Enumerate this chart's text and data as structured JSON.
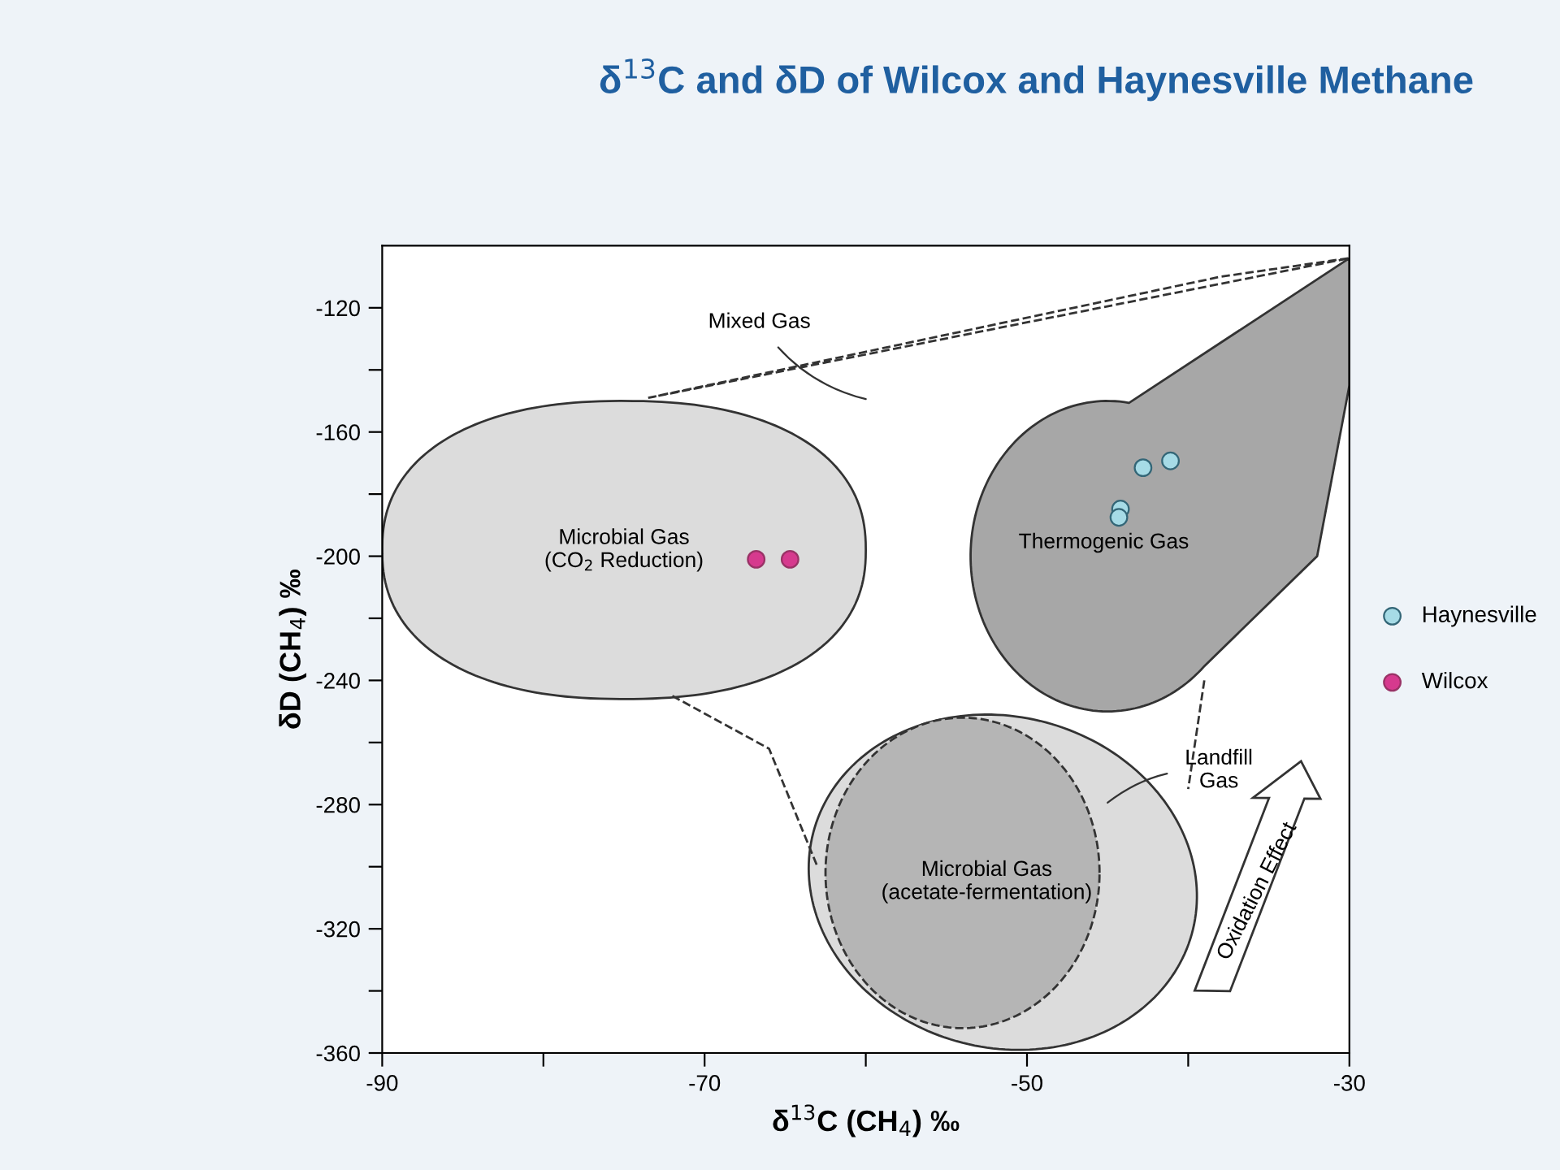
{
  "chart_data": {
    "type": "scatter",
    "title": "δ$^{13}$C and δD of Wilcox and Haynesville Methane",
    "xlabel": "δ$^{13}$C (CH$_{4}$) ‰",
    "ylabel": "δD (CH$_{4}$) ‰",
    "xlim": [
      -90,
      -30
    ],
    "ylim": [
      -360,
      -100
    ],
    "xticks": [
      -90,
      {
        "value": -80,
        "label": null
      },
      -70,
      {
        "value": -60,
        "label": null
      },
      -50,
      {
        "value": -40,
        "label": null
      },
      -30
    ],
    "yticks": [
      -360,
      {
        "value": -340,
        "label": null
      },
      -320,
      {
        "value": -300,
        "label": null
      },
      -280,
      {
        "value": -260,
        "label": null
      },
      -240,
      {
        "value": -220,
        "label": null
      },
      -200,
      {
        "value": -180,
        "label": null
      },
      -160,
      {
        "value": -140,
        "label": null
      },
      -120
    ],
    "series": [
      {
        "name": "Haynesville",
        "color": "#a6dbe6",
        "x": [
          -42.8,
          -41.1,
          -44.2,
          -44.3
        ],
        "values": [
          -171.5,
          -169.3,
          -184.8,
          -187.5
        ]
      },
      {
        "name": "Wilcox",
        "color": "#d63a8e",
        "x": [
          -66.8,
          -64.7
        ],
        "values": [
          -201,
          -201
        ]
      }
    ],
    "annotations": [
      "Microbial Gas\n(CO$_{2}$ Reduction)",
      "Thermogenic Gas",
      "Mixed Gas",
      "Landfill\nGas",
      "Microbial Gas\n(acetate-fermentation)",
      "Oxidation Effect"
    ],
    "legend": "right",
    "marker": "circle",
    "grid": false
  }
}
